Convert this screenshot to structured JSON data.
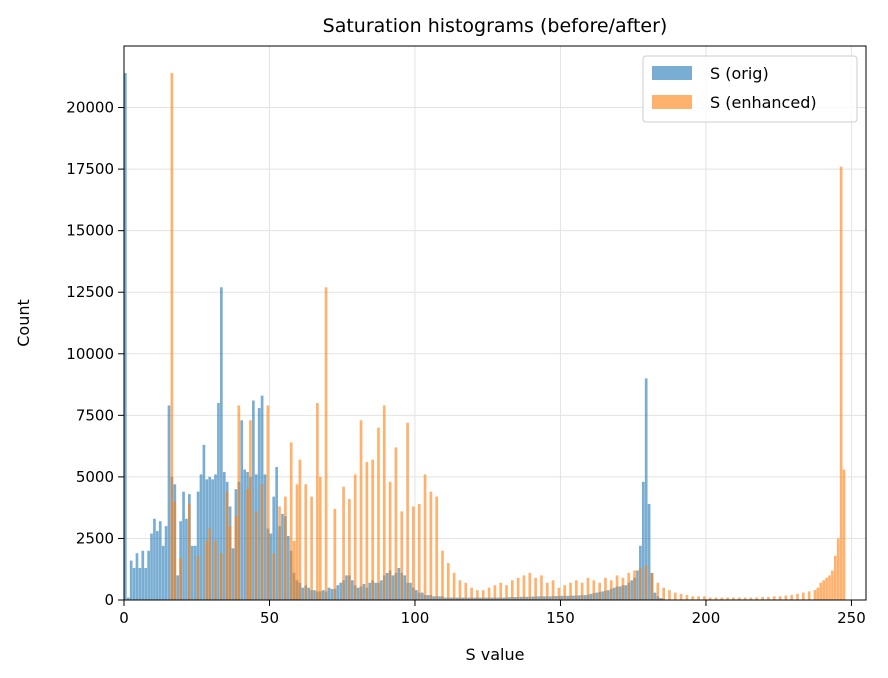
{
  "chart_data": {
    "type": "bar",
    "title": "Saturation histograms (before/after)",
    "xlabel": "S value",
    "ylabel": "Count",
    "xlim": [
      0,
      255
    ],
    "ylim": [
      0,
      22500
    ],
    "xticks": [
      0,
      50,
      100,
      150,
      200,
      250
    ],
    "yticks": [
      0,
      2500,
      5000,
      7500,
      10000,
      12500,
      15000,
      17500,
      20000
    ],
    "grid": true,
    "legend_position": "top-right",
    "series": [
      {
        "name": "S (orig)",
        "color": "#1f77b4",
        "opacity": 0.6,
        "points": [
          [
            0,
            21400
          ],
          [
            1,
            100
          ],
          [
            2,
            1600
          ],
          [
            3,
            1300
          ],
          [
            4,
            1900
          ],
          [
            5,
            1300
          ],
          [
            6,
            2000
          ],
          [
            7,
            1300
          ],
          [
            8,
            2000
          ],
          [
            9,
            2700
          ],
          [
            10,
            3300
          ],
          [
            11,
            2800
          ],
          [
            12,
            3200
          ],
          [
            13,
            2200
          ],
          [
            14,
            3000
          ],
          [
            15,
            7900
          ],
          [
            16,
            5000
          ],
          [
            17,
            4700
          ],
          [
            18,
            1000
          ],
          [
            19,
            3200
          ],
          [
            20,
            4400
          ],
          [
            21,
            3300
          ],
          [
            22,
            4300
          ],
          [
            23,
            2200
          ],
          [
            24,
            2200
          ],
          [
            25,
            4400
          ],
          [
            26,
            5100
          ],
          [
            27,
            6300
          ],
          [
            28,
            4900
          ],
          [
            29,
            5000
          ],
          [
            30,
            4900
          ],
          [
            31,
            5100
          ],
          [
            32,
            8000
          ],
          [
            33,
            12700
          ],
          [
            34,
            5200
          ],
          [
            35,
            4800
          ],
          [
            36,
            3800
          ],
          [
            37,
            2100
          ],
          [
            38,
            4500
          ],
          [
            39,
            4800
          ],
          [
            40,
            7300
          ],
          [
            41,
            5300
          ],
          [
            42,
            5200
          ],
          [
            43,
            5000
          ],
          [
            44,
            8100
          ],
          [
            45,
            5100
          ],
          [
            46,
            7800
          ],
          [
            47,
            8300
          ],
          [
            48,
            5100
          ],
          [
            49,
            2900
          ],
          [
            50,
            2700
          ],
          [
            51,
            4200
          ],
          [
            52,
            5400
          ],
          [
            53,
            3000
          ],
          [
            54,
            3500
          ],
          [
            55,
            3400
          ],
          [
            56,
            2600
          ],
          [
            57,
            2000
          ],
          [
            58,
            1100
          ],
          [
            59,
            800
          ],
          [
            60,
            700
          ],
          [
            61,
            500
          ],
          [
            62,
            600
          ],
          [
            63,
            500
          ],
          [
            64,
            400
          ],
          [
            65,
            400
          ],
          [
            66,
            350
          ],
          [
            67,
            350
          ],
          [
            68,
            400
          ],
          [
            69,
            350
          ],
          [
            70,
            500
          ],
          [
            71,
            450
          ],
          [
            72,
            450
          ],
          [
            73,
            600
          ],
          [
            74,
            700
          ],
          [
            75,
            800
          ],
          [
            76,
            1000
          ],
          [
            77,
            1000
          ],
          [
            78,
            800
          ],
          [
            79,
            600
          ],
          [
            80,
            500
          ],
          [
            81,
            550
          ],
          [
            82,
            650
          ],
          [
            83,
            500
          ],
          [
            84,
            700
          ],
          [
            85,
            800
          ],
          [
            86,
            700
          ],
          [
            87,
            700
          ],
          [
            88,
            800
          ],
          [
            89,
            1000
          ],
          [
            90,
            1100
          ],
          [
            91,
            1200
          ],
          [
            92,
            1000
          ],
          [
            93,
            1100
          ],
          [
            94,
            1300
          ],
          [
            95,
            1100
          ],
          [
            96,
            1000
          ],
          [
            97,
            700
          ],
          [
            98,
            700
          ],
          [
            99,
            500
          ],
          [
            100,
            400
          ],
          [
            101,
            300
          ],
          [
            102,
            300
          ],
          [
            103,
            200
          ],
          [
            104,
            200
          ],
          [
            105,
            200
          ],
          [
            106,
            150
          ],
          [
            107,
            150
          ],
          [
            108,
            150
          ],
          [
            109,
            150
          ],
          [
            110,
            100
          ],
          [
            111,
            100
          ],
          [
            112,
            100
          ],
          [
            113,
            100
          ],
          [
            114,
            100
          ],
          [
            115,
            100
          ],
          [
            116,
            100
          ],
          [
            117,
            100
          ],
          [
            118,
            100
          ],
          [
            119,
            100
          ],
          [
            120,
            100
          ],
          [
            121,
            100
          ],
          [
            122,
            100
          ],
          [
            123,
            100
          ],
          [
            124,
            100
          ],
          [
            125,
            100
          ],
          [
            126,
            100
          ],
          [
            127,
            100
          ],
          [
            128,
            100
          ],
          [
            129,
            100
          ],
          [
            130,
            100
          ],
          [
            131,
            100
          ],
          [
            132,
            120
          ],
          [
            133,
            120
          ],
          [
            134,
            120
          ],
          [
            135,
            120
          ],
          [
            136,
            130
          ],
          [
            137,
            130
          ],
          [
            138,
            130
          ],
          [
            139,
            130
          ],
          [
            140,
            140
          ],
          [
            141,
            140
          ],
          [
            142,
            150
          ],
          [
            143,
            150
          ],
          [
            144,
            150
          ],
          [
            145,
            150
          ],
          [
            146,
            150
          ],
          [
            147,
            160
          ],
          [
            148,
            160
          ],
          [
            149,
            160
          ],
          [
            150,
            170
          ],
          [
            151,
            170
          ],
          [
            152,
            170
          ],
          [
            153,
            180
          ],
          [
            154,
            180
          ],
          [
            155,
            180
          ],
          [
            156,
            190
          ],
          [
            157,
            200
          ],
          [
            158,
            200
          ],
          [
            159,
            220
          ],
          [
            160,
            250
          ],
          [
            161,
            280
          ],
          [
            162,
            300
          ],
          [
            163,
            320
          ],
          [
            164,
            350
          ],
          [
            165,
            380
          ],
          [
            166,
            400
          ],
          [
            167,
            450
          ],
          [
            168,
            500
          ],
          [
            169,
            550
          ],
          [
            170,
            550
          ],
          [
            171,
            600
          ],
          [
            172,
            600
          ],
          [
            173,
            700
          ],
          [
            174,
            800
          ],
          [
            175,
            900
          ],
          [
            176,
            1200
          ],
          [
            177,
            2200
          ],
          [
            178,
            4800
          ],
          [
            179,
            9000
          ],
          [
            180,
            3900
          ],
          [
            181,
            1100
          ],
          [
            182,
            300
          ],
          [
            183,
            150
          ],
          [
            184,
            80
          ],
          [
            185,
            50
          ]
        ]
      },
      {
        "name": "S (enhanced)",
        "color": "#ff7f0e",
        "opacity": 0.6,
        "points": [
          [
            16,
            21400
          ],
          [
            17,
            4000
          ],
          [
            19,
            1700
          ],
          [
            22,
            3900
          ],
          [
            25,
            1800
          ],
          [
            28,
            2400
          ],
          [
            29,
            2900
          ],
          [
            31,
            2400
          ],
          [
            33,
            1900
          ],
          [
            35,
            4400
          ],
          [
            36,
            3000
          ],
          [
            38,
            3400
          ],
          [
            39,
            7900
          ],
          [
            42,
            4500
          ],
          [
            43,
            7300
          ],
          [
            45,
            3600
          ],
          [
            47,
            4700
          ],
          [
            49,
            7900
          ],
          [
            51,
            1900
          ],
          [
            53,
            3800
          ],
          [
            55,
            4200
          ],
          [
            57,
            6400
          ],
          [
            58,
            2400
          ],
          [
            59,
            4700
          ],
          [
            60,
            5700
          ],
          [
            62,
            4700
          ],
          [
            64,
            4200
          ],
          [
            66,
            8000
          ],
          [
            67,
            5000
          ],
          [
            69,
            12700
          ],
          [
            72,
            3700
          ],
          [
            75,
            4600
          ],
          [
            77,
            4100
          ],
          [
            79,
            5100
          ],
          [
            81,
            7300
          ],
          [
            83,
            5600
          ],
          [
            85,
            5700
          ],
          [
            87,
            7000
          ],
          [
            89,
            7900
          ],
          [
            91,
            4800
          ],
          [
            93,
            6200
          ],
          [
            95,
            3600
          ],
          [
            97,
            7200
          ],
          [
            99,
            3800
          ],
          [
            101,
            3900
          ],
          [
            103,
            5100
          ],
          [
            105,
            4400
          ],
          [
            107,
            4200
          ],
          [
            109,
            2000
          ],
          [
            111,
            1500
          ],
          [
            113,
            1100
          ],
          [
            115,
            800
          ],
          [
            117,
            700
          ],
          [
            119,
            500
          ],
          [
            121,
            400
          ],
          [
            123,
            400
          ],
          [
            125,
            500
          ],
          [
            127,
            600
          ],
          [
            129,
            700
          ],
          [
            131,
            600
          ],
          [
            133,
            800
          ],
          [
            135,
            900
          ],
          [
            137,
            1000
          ],
          [
            139,
            1100
          ],
          [
            141,
            900
          ],
          [
            143,
            1000
          ],
          [
            145,
            700
          ],
          [
            147,
            800
          ],
          [
            149,
            500
          ],
          [
            151,
            600
          ],
          [
            153,
            700
          ],
          [
            155,
            800
          ],
          [
            157,
            700
          ],
          [
            159,
            900
          ],
          [
            161,
            800
          ],
          [
            163,
            700
          ],
          [
            165,
            900
          ],
          [
            167,
            800
          ],
          [
            169,
            1000
          ],
          [
            171,
            900
          ],
          [
            173,
            1100
          ],
          [
            175,
            1200
          ],
          [
            177,
            1300
          ],
          [
            179,
            1400
          ],
          [
            181,
            1100
          ],
          [
            183,
            700
          ],
          [
            185,
            500
          ],
          [
            187,
            400
          ],
          [
            189,
            300
          ],
          [
            191,
            250
          ],
          [
            193,
            200
          ],
          [
            195,
            150
          ],
          [
            197,
            150
          ],
          [
            199,
            150
          ],
          [
            201,
            100
          ],
          [
            203,
            100
          ],
          [
            205,
            100
          ],
          [
            207,
            100
          ],
          [
            209,
            100
          ],
          [
            211,
            100
          ],
          [
            213,
            100
          ],
          [
            215,
            100
          ],
          [
            217,
            100
          ],
          [
            219,
            120
          ],
          [
            221,
            120
          ],
          [
            223,
            150
          ],
          [
            225,
            150
          ],
          [
            227,
            180
          ],
          [
            229,
            200
          ],
          [
            231,
            250
          ],
          [
            233,
            300
          ],
          [
            235,
            350
          ],
          [
            237,
            400
          ],
          [
            238,
            500
          ],
          [
            239,
            700
          ],
          [
            240,
            800
          ],
          [
            241,
            900
          ],
          [
            242,
            1000
          ],
          [
            243,
            1200
          ],
          [
            244,
            1800
          ],
          [
            245,
            2500
          ],
          [
            246,
            17600
          ],
          [
            247,
            5300
          ]
        ]
      }
    ]
  }
}
